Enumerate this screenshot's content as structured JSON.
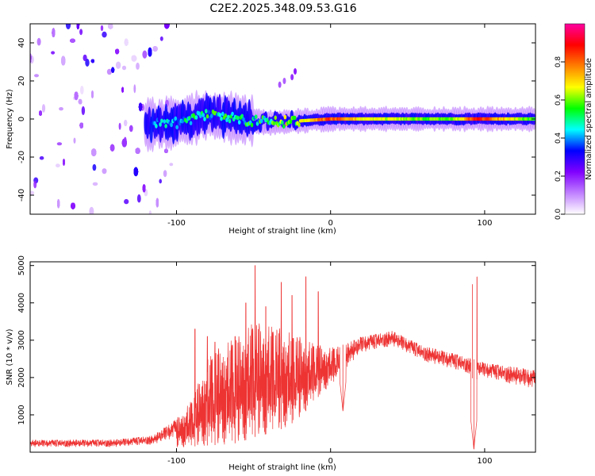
{
  "title": "C2E2.2025.348.09.53.G16",
  "chart_data": [
    {
      "type": "heatmap",
      "title": "C2E2.2025.348.09.53.G16",
      "xlabel": "Height of straight line (km)",
      "ylabel": "Frequency (Hz)",
      "xlim": [
        -195,
        133
      ],
      "ylim": [
        -50,
        50
      ],
      "x_ticks": [
        -100,
        0,
        100
      ],
      "y_ticks": [
        -40,
        -20,
        0,
        20,
        40
      ],
      "colorbar": {
        "label": "Normalized spectral amplitude",
        "range": [
          0,
          1
        ],
        "ticks": [
          0.0,
          0.2,
          0.4,
          0.6,
          0.8
        ],
        "colors": [
          "#ffffff",
          "#c080ff",
          "#8000ff",
          "#0000ff",
          "#00ffff",
          "#00ff00",
          "#ffff00",
          "#ff8000",
          "#ff0000",
          "#ff00a0"
        ]
      },
      "features": {
        "noise_region_km": [
          -195,
          -100
        ],
        "signal_start_km": -120,
        "carrier_track": [
          {
            "x": -120,
            "f": -3,
            "amp": 0.35
          },
          {
            "x": -100,
            "f": -2,
            "amp": 0.45
          },
          {
            "x": -80,
            "f": 2,
            "amp": 0.5
          },
          {
            "x": -60,
            "f": 0,
            "amp": 0.5
          },
          {
            "x": -40,
            "f": -2,
            "amp": 0.55
          },
          {
            "x": -20,
            "f": -1,
            "amp": 0.65
          },
          {
            "x": 0,
            "f": 0,
            "amp": 0.85
          },
          {
            "x": 20,
            "f": 0,
            "amp": 0.7
          },
          {
            "x": 40,
            "f": 0,
            "amp": 0.65
          },
          {
            "x": 60,
            "f": 0,
            "amp": 0.6
          },
          {
            "x": 80,
            "f": 0,
            "amp": 0.6
          },
          {
            "x": 95,
            "f": 0,
            "amp": 0.9
          },
          {
            "x": 133,
            "f": 0,
            "amp": 0.55
          }
        ]
      }
    },
    {
      "type": "line",
      "xlabel": "Height of straight line (km)",
      "ylabel": "SNR (10 * v/v)",
      "xlim": [
        -195,
        133
      ],
      "ylim": [
        0,
        5100
      ],
      "x_ticks": [
        -100,
        0,
        100
      ],
      "y_ticks": [
        1000,
        2000,
        3000,
        4000,
        5000
      ],
      "color": "#ee3333",
      "series": [
        {
          "name": "SNR",
          "envelope": [
            {
              "x": -195,
              "lo": 30,
              "hi": 330
            },
            {
              "x": -140,
              "lo": 30,
              "hi": 340
            },
            {
              "x": -115,
              "lo": 80,
              "hi": 450
            },
            {
              "x": -100,
              "lo": 120,
              "hi": 900
            },
            {
              "x": -90,
              "lo": 150,
              "hi": 1400
            },
            {
              "x": -80,
              "lo": 180,
              "hi": 2500
            },
            {
              "x": -70,
              "lo": 200,
              "hi": 2900
            },
            {
              "x": -60,
              "lo": 250,
              "hi": 3100
            },
            {
              "x": -50,
              "lo": 400,
              "hi": 3500
            },
            {
              "x": -40,
              "lo": 500,
              "hi": 3400
            },
            {
              "x": -30,
              "lo": 650,
              "hi": 3300
            },
            {
              "x": -20,
              "lo": 900,
              "hi": 3100
            },
            {
              "x": -10,
              "lo": 1400,
              "hi": 2900
            },
            {
              "x": 0,
              "lo": 1800,
              "hi": 2800
            },
            {
              "x": 10,
              "lo": 2100,
              "hi": 2900
            },
            {
              "x": 20,
              "lo": 2550,
              "hi": 3100
            },
            {
              "x": 40,
              "lo": 2750,
              "hi": 3250
            },
            {
              "x": 60,
              "lo": 2350,
              "hi": 2850
            },
            {
              "x": 80,
              "lo": 2100,
              "hi": 2650
            },
            {
              "x": 100,
              "lo": 1900,
              "hi": 2400
            },
            {
              "x": 133,
              "lo": 1550,
              "hi": 2200
            }
          ],
          "spikes": [
            {
              "x": -88,
              "y": 3300
            },
            {
              "x": -80,
              "y": 3100
            },
            {
              "x": -75,
              "y": 2950
            },
            {
              "x": -62,
              "y": 3100
            },
            {
              "x": -55,
              "y": 4000
            },
            {
              "x": -49,
              "y": 5000
            },
            {
              "x": -42,
              "y": 3900
            },
            {
              "x": -32,
              "y": 4550
            },
            {
              "x": -25,
              "y": 4200
            },
            {
              "x": -16,
              "y": 4700
            },
            {
              "x": -8,
              "y": 4300
            },
            {
              "x": 92,
              "y": 4500
            },
            {
              "x": 95,
              "y": 4700
            }
          ],
          "dips": [
            {
              "x": 8,
              "y": 1100
            },
            {
              "x": 93,
              "y": 80
            }
          ]
        }
      ]
    }
  ]
}
